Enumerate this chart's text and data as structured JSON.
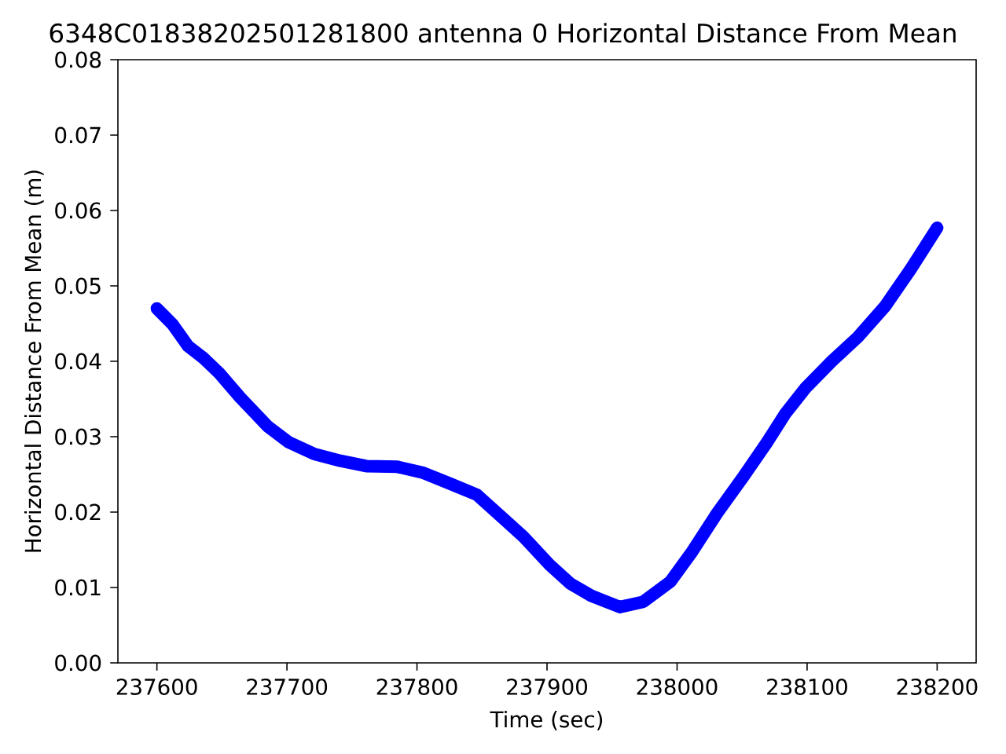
{
  "chart_data": {
    "type": "line",
    "title": "6348C01838202501281800 antenna 0 Horizontal Distance From Mean",
    "xlabel": "Time (sec)",
    "ylabel": "Horizontal Distance From Mean (m)",
    "x": [
      237600,
      237612,
      237624,
      237636,
      237648,
      237664,
      237685,
      237701,
      237721,
      237741,
      237761,
      237785,
      237805,
      237825,
      237846,
      237866,
      237882,
      237902,
      237918,
      237934,
      237956,
      237974,
      237995,
      238011,
      238031,
      238051,
      238069,
      238083,
      238099,
      238119,
      238139,
      238160,
      238180,
      238200
    ],
    "values": [
      0.047,
      0.0449,
      0.042,
      0.0404,
      0.0384,
      0.0352,
      0.0314,
      0.0293,
      0.0277,
      0.0268,
      0.0261,
      0.026,
      0.0252,
      0.0238,
      0.0223,
      0.0192,
      0.0167,
      0.013,
      0.0105,
      0.0089,
      0.0074,
      0.0081,
      0.0108,
      0.0146,
      0.0199,
      0.0247,
      0.0292,
      0.033,
      0.0365,
      0.04,
      0.0432,
      0.0473,
      0.0523,
      0.0577
    ],
    "color": "#0000ff",
    "line_style": "solid",
    "xlim": [
      237570,
      238230
    ],
    "ylim": [
      0,
      0.08
    ],
    "xticks": [
      237600,
      237700,
      237800,
      237900,
      238000,
      238100,
      238200
    ],
    "yticks": [
      {
        "value": 0,
        "label": "0.00"
      },
      {
        "value": 0.01,
        "label": "0.01"
      },
      {
        "value": 0.02,
        "label": "0.02"
      },
      {
        "value": 0.03,
        "label": "0.03"
      },
      {
        "value": 0.04,
        "label": "0.04"
      },
      {
        "value": 0.05,
        "label": "0.05"
      },
      {
        "value": 0.06,
        "label": "0.06"
      },
      {
        "value": 0.07,
        "label": "0.07"
      },
      {
        "value": 0.08,
        "label": "0.08"
      }
    ]
  }
}
